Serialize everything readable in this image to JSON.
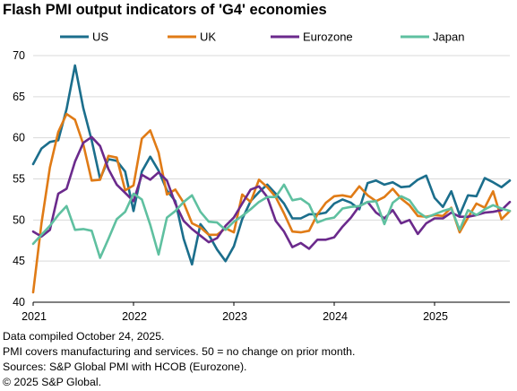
{
  "chart_data": {
    "type": "line",
    "title": "Flash PMI output indicators of 'G4' economies",
    "xlabel": "",
    "ylabel": "",
    "ylim": [
      40,
      70
    ],
    "yticks": [
      40,
      45,
      50,
      55,
      60,
      65,
      70
    ],
    "xlim": [
      "2021-01",
      "2025-10"
    ],
    "xticks": [
      "2021",
      "2022",
      "2023",
      "2024",
      "2025"
    ],
    "grid": true,
    "legend": "top",
    "series": [
      {
        "name": "US",
        "color": "#1b6e8c",
        "values": [
          [
            "2021-01",
            56.8
          ],
          [
            "2021-02",
            58.7
          ],
          [
            "2021-03",
            59.5
          ],
          [
            "2021-04",
            59.7
          ],
          [
            "2021-05",
            63.5
          ],
          [
            "2021-06",
            68.8
          ],
          [
            "2021-07",
            63.6
          ],
          [
            "2021-08",
            59.7
          ],
          [
            "2021-09",
            55.0
          ],
          [
            "2021-10",
            57.4
          ],
          [
            "2021-11",
            57.2
          ],
          [
            "2021-12",
            55.9
          ],
          [
            "2022-01",
            51.1
          ],
          [
            "2022-02",
            55.9
          ],
          [
            "2022-03",
            57.7
          ],
          [
            "2022-04",
            56.0
          ],
          [
            "2022-05",
            53.6
          ],
          [
            "2022-06",
            52.3
          ],
          [
            "2022-07",
            47.7
          ],
          [
            "2022-08",
            44.6
          ],
          [
            "2022-09",
            49.5
          ],
          [
            "2022-10",
            48.2
          ],
          [
            "2022-11",
            46.4
          ],
          [
            "2022-12",
            45.0
          ],
          [
            "2023-01",
            46.8
          ],
          [
            "2023-02",
            50.1
          ],
          [
            "2023-03",
            52.3
          ],
          [
            "2023-04",
            53.4
          ],
          [
            "2023-05",
            54.3
          ],
          [
            "2023-06",
            53.2
          ],
          [
            "2023-07",
            52.0
          ],
          [
            "2023-08",
            50.2
          ],
          [
            "2023-09",
            50.2
          ],
          [
            "2023-10",
            50.7
          ],
          [
            "2023-11",
            50.7
          ],
          [
            "2023-12",
            50.9
          ],
          [
            "2024-01",
            52.0
          ],
          [
            "2024-02",
            52.5
          ],
          [
            "2024-03",
            52.1
          ],
          [
            "2024-04",
            51.3
          ],
          [
            "2024-05",
            54.5
          ],
          [
            "2024-06",
            54.8
          ],
          [
            "2024-07",
            54.3
          ],
          [
            "2024-08",
            54.6
          ],
          [
            "2024-09",
            54.0
          ],
          [
            "2024-10",
            54.1
          ],
          [
            "2024-11",
            54.9
          ],
          [
            "2024-12",
            55.4
          ],
          [
            "2025-01",
            52.7
          ],
          [
            "2025-02",
            51.6
          ],
          [
            "2025-03",
            53.5
          ],
          [
            "2025-04",
            50.6
          ],
          [
            "2025-05",
            53.0
          ],
          [
            "2025-06",
            52.9
          ],
          [
            "2025-07",
            55.1
          ],
          [
            "2025-08",
            54.6
          ],
          [
            "2025-09",
            54.0
          ],
          [
            "2025-10",
            54.8
          ]
        ]
      },
      {
        "name": "UK",
        "color": "#e07b16",
        "values": [
          [
            "2021-01",
            41.2
          ],
          [
            "2021-02",
            49.6
          ],
          [
            "2021-03",
            56.4
          ],
          [
            "2021-04",
            60.7
          ],
          [
            "2021-05",
            62.9
          ],
          [
            "2021-06",
            62.2
          ],
          [
            "2021-07",
            59.2
          ],
          [
            "2021-08",
            54.8
          ],
          [
            "2021-09",
            54.9
          ],
          [
            "2021-10",
            57.8
          ],
          [
            "2021-11",
            57.6
          ],
          [
            "2021-12",
            53.6
          ],
          [
            "2022-01",
            54.2
          ],
          [
            "2022-02",
            59.9
          ],
          [
            "2022-03",
            60.9
          ],
          [
            "2022-04",
            58.2
          ],
          [
            "2022-05",
            53.1
          ],
          [
            "2022-06",
            53.7
          ],
          [
            "2022-07",
            52.1
          ],
          [
            "2022-08",
            49.6
          ],
          [
            "2022-09",
            49.1
          ],
          [
            "2022-10",
            48.2
          ],
          [
            "2022-11",
            48.2
          ],
          [
            "2022-12",
            49.0
          ],
          [
            "2023-01",
            48.5
          ],
          [
            "2023-02",
            53.1
          ],
          [
            "2023-03",
            52.2
          ],
          [
            "2023-04",
            54.9
          ],
          [
            "2023-05",
            54.0
          ],
          [
            "2023-06",
            52.8
          ],
          [
            "2023-07",
            50.8
          ],
          [
            "2023-08",
            48.6
          ],
          [
            "2023-09",
            48.5
          ],
          [
            "2023-10",
            48.7
          ],
          [
            "2023-11",
            50.7
          ],
          [
            "2023-12",
            52.1
          ],
          [
            "2024-01",
            52.9
          ],
          [
            "2024-02",
            53.0
          ],
          [
            "2024-03",
            52.8
          ],
          [
            "2024-04",
            54.1
          ],
          [
            "2024-05",
            53.0
          ],
          [
            "2024-06",
            52.3
          ],
          [
            "2024-07",
            52.8
          ],
          [
            "2024-08",
            53.8
          ],
          [
            "2024-09",
            52.6
          ],
          [
            "2024-10",
            51.8
          ],
          [
            "2024-11",
            50.5
          ],
          [
            "2024-12",
            50.4
          ],
          [
            "2025-01",
            50.6
          ],
          [
            "2025-02",
            50.5
          ],
          [
            "2025-03",
            51.5
          ],
          [
            "2025-04",
            48.5
          ],
          [
            "2025-05",
            50.3
          ],
          [
            "2025-06",
            52.0
          ],
          [
            "2025-07",
            51.5
          ],
          [
            "2025-08",
            53.5
          ],
          [
            "2025-09",
            50.1
          ],
          [
            "2025-10",
            51.1
          ]
        ]
      },
      {
        "name": "Eurozone",
        "color": "#6b2a8c",
        "values": [
          [
            "2021-01",
            48.6
          ],
          [
            "2021-02",
            48.0
          ],
          [
            "2021-03",
            48.8
          ],
          [
            "2021-04",
            53.2
          ],
          [
            "2021-05",
            53.8
          ],
          [
            "2021-06",
            57.1
          ],
          [
            "2021-07",
            59.4
          ],
          [
            "2021-08",
            60.1
          ],
          [
            "2021-09",
            59.0
          ],
          [
            "2021-10",
            56.2
          ],
          [
            "2021-11",
            54.3
          ],
          [
            "2021-12",
            53.3
          ],
          [
            "2022-01",
            52.3
          ],
          [
            "2022-02",
            55.5
          ],
          [
            "2022-03",
            54.9
          ],
          [
            "2022-04",
            55.8
          ],
          [
            "2022-05",
            54.8
          ],
          [
            "2022-06",
            52.0
          ],
          [
            "2022-07",
            49.9
          ],
          [
            "2022-08",
            48.9
          ],
          [
            "2022-09",
            48.1
          ],
          [
            "2022-10",
            47.3
          ],
          [
            "2022-11",
            47.8
          ],
          [
            "2022-12",
            49.3
          ],
          [
            "2023-01",
            50.3
          ],
          [
            "2023-02",
            52.0
          ],
          [
            "2023-03",
            53.7
          ],
          [
            "2023-04",
            54.1
          ],
          [
            "2023-05",
            52.8
          ],
          [
            "2023-06",
            49.9
          ],
          [
            "2023-07",
            48.6
          ],
          [
            "2023-08",
            46.7
          ],
          [
            "2023-09",
            47.2
          ],
          [
            "2023-10",
            46.5
          ],
          [
            "2023-11",
            47.6
          ],
          [
            "2023-12",
            47.6
          ],
          [
            "2024-01",
            47.9
          ],
          [
            "2024-02",
            49.2
          ],
          [
            "2024-03",
            50.3
          ],
          [
            "2024-04",
            51.7
          ],
          [
            "2024-05",
            52.2
          ],
          [
            "2024-06",
            50.9
          ],
          [
            "2024-07",
            50.2
          ],
          [
            "2024-08",
            51.2
          ],
          [
            "2024-09",
            49.6
          ],
          [
            "2024-10",
            50.0
          ],
          [
            "2024-11",
            48.3
          ],
          [
            "2024-12",
            49.6
          ],
          [
            "2025-01",
            50.2
          ],
          [
            "2025-02",
            50.2
          ],
          [
            "2025-03",
            50.9
          ],
          [
            "2025-04",
            50.4
          ],
          [
            "2025-05",
            50.4
          ],
          [
            "2025-06",
            50.6
          ],
          [
            "2025-07",
            50.9
          ],
          [
            "2025-08",
            51.0
          ],
          [
            "2025-09",
            51.2
          ],
          [
            "2025-10",
            52.2
          ]
        ]
      },
      {
        "name": "Japan",
        "color": "#5fc0a0",
        "values": [
          [
            "2021-01",
            47.1
          ],
          [
            "2021-02",
            48.2
          ],
          [
            "2021-03",
            49.3
          ],
          [
            "2021-04",
            50.6
          ],
          [
            "2021-05",
            51.7
          ],
          [
            "2021-06",
            48.8
          ],
          [
            "2021-07",
            48.9
          ],
          [
            "2021-08",
            48.7
          ],
          [
            "2021-09",
            45.4
          ],
          [
            "2021-10",
            47.7
          ],
          [
            "2021-11",
            50.1
          ],
          [
            "2021-12",
            51.0
          ],
          [
            "2022-01",
            53.2
          ],
          [
            "2022-02",
            52.5
          ],
          [
            "2022-03",
            49.4
          ],
          [
            "2022-04",
            45.8
          ],
          [
            "2022-05",
            50.3
          ],
          [
            "2022-06",
            51.1
          ],
          [
            "2022-07",
            52.2
          ],
          [
            "2022-08",
            53.0
          ],
          [
            "2022-09",
            51.0
          ],
          [
            "2022-10",
            49.8
          ],
          [
            "2022-11",
            49.7
          ],
          [
            "2022-12",
            48.8
          ],
          [
            "2023-01",
            49.8
          ],
          [
            "2023-02",
            50.5
          ],
          [
            "2023-03",
            51.3
          ],
          [
            "2023-04",
            52.2
          ],
          [
            "2023-05",
            52.8
          ],
          [
            "2023-06",
            52.8
          ],
          [
            "2023-07",
            54.3
          ],
          [
            "2023-08",
            52.4
          ],
          [
            "2023-09",
            52.6
          ],
          [
            "2023-10",
            51.9
          ],
          [
            "2023-11",
            49.7
          ],
          [
            "2023-12",
            50.1
          ],
          [
            "2024-01",
            50.3
          ],
          [
            "2024-02",
            51.4
          ],
          [
            "2024-03",
            51.6
          ],
          [
            "2024-04",
            51.7
          ],
          [
            "2024-05",
            52.2
          ],
          [
            "2024-06",
            52.3
          ],
          [
            "2024-07",
            49.5
          ],
          [
            "2024-08",
            52.1
          ],
          [
            "2024-09",
            52.9
          ],
          [
            "2024-10",
            52.4
          ],
          [
            "2024-11",
            51.0
          ],
          [
            "2024-12",
            50.3
          ],
          [
            "2025-01",
            50.7
          ],
          [
            "2025-02",
            51.1
          ],
          [
            "2025-03",
            51.4
          ],
          [
            "2025-04",
            48.8
          ],
          [
            "2025-05",
            51.2
          ],
          [
            "2025-06",
            50.6
          ],
          [
            "2025-07",
            51.3
          ],
          [
            "2025-08",
            51.8
          ],
          [
            "2025-09",
            51.4
          ],
          [
            "2025-10",
            51.1
          ]
        ]
      }
    ]
  },
  "footer": {
    "line1": "Data compiled October 24, 2025.",
    "line2": "PMI covers manufacturing and services. 50 = no change on prior month.",
    "line3": "Sources: S&P Global PMI with HCOB (Eurozone).",
    "line4": "© 2025 S&P Global."
  }
}
